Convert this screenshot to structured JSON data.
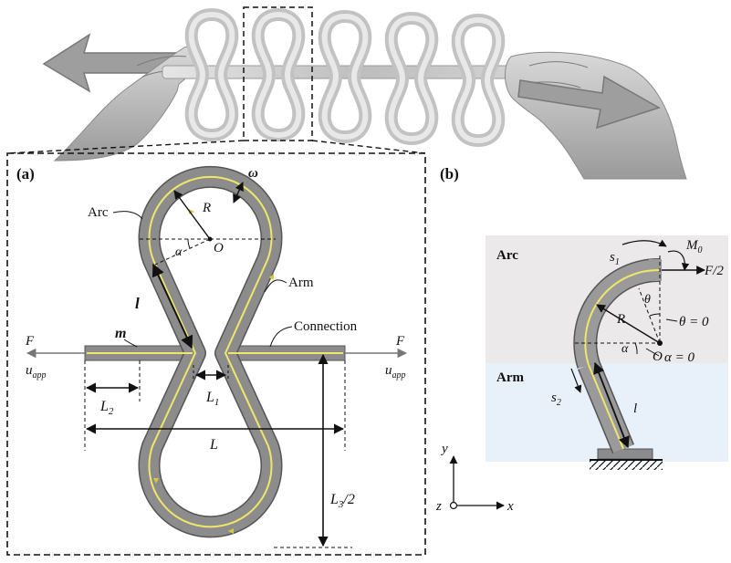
{
  "panel_a": {
    "label": "(a)",
    "arc": "Arc",
    "arm": "Arm",
    "connection": "Connection",
    "R": "R",
    "O": "O",
    "alpha": "α",
    "omega": "ω",
    "l": "l",
    "m": "m",
    "F_left": "F",
    "F_right": "F",
    "u_left": "u",
    "u_right": "u",
    "u_sub": "app",
    "L1": "L",
    "L1_sub": "1",
    "L2": "L",
    "L2_sub": "2",
    "L": "L",
    "L3": "L",
    "L3_sub": "3",
    "L3_suffix": "/2"
  },
  "panel_b": {
    "label": "(b)",
    "arc": "Arc",
    "arm": "Arm",
    "s1": "s",
    "s1_sub": "1",
    "s2": "s",
    "s2_sub": "2",
    "M0": "M",
    "M0_sub": "0",
    "F2": "F/2",
    "theta": "θ",
    "theta0": "θ = 0",
    "alpha0": "α = 0",
    "alpha": "α",
    "R": "R",
    "O": "O",
    "l": "l"
  },
  "axes": {
    "y": "y",
    "z": "z",
    "x": "x"
  },
  "colors": {
    "beam": "#8c8c8c",
    "beam_edge": "#555555",
    "centerline": "#f0e66a",
    "arc_region": "#ece9ea",
    "arm_region": "#e8f1fa",
    "metal": "#cfcfcf"
  }
}
